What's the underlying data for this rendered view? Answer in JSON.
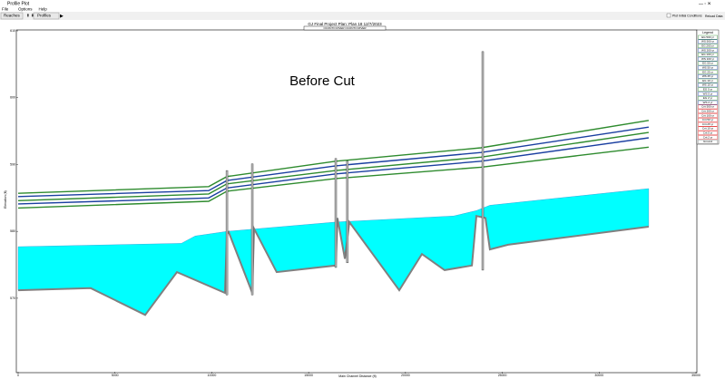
{
  "window": {
    "title": "Profile Plot"
  },
  "menu": [
    "File",
    "Options",
    "Help"
  ],
  "toolbar": {
    "reaches": "Reaches",
    "profiles": "Profiles",
    "checkbox": "Plot Initial Conditions",
    "reload": "Reload Data"
  },
  "chart_data": {
    "type": "line",
    "title": "GJ Final Project    Plan: Plan 18    12/7/2023",
    "subtitle": "OCONTO RIVER OCONTO RIVER",
    "annotation": "Before Cut",
    "x_label": "Main Channel Distance (ft)",
    "y_label": "Elevation (ft)",
    "xlim": [
      0,
      35000
    ],
    "xticks": [
      0,
      5000,
      10000,
      15000,
      20000,
      25000,
      30000,
      35000
    ],
    "ylim": [
      559,
      610
    ],
    "yticks": [
      570,
      580,
      590,
      600,
      610
    ],
    "series": [
      {
        "color": "#00ffff",
        "fill": true,
        "x": [
          0,
          8430,
          9140,
          10780,
          16400,
          22490,
          23660,
          24360,
          32560
        ],
        "values": [
          577.7,
          578.2,
          579.3,
          580.0,
          581.4,
          582.3,
          583.1,
          583.9,
          586.4
        ]
      },
      {
        "color": "#2e8b2e",
        "x": [
          0,
          9840,
          10780,
          16400,
          23900,
          32560
        ],
        "values": [
          585.7,
          586.7,
          588.2,
          590.5,
          592.5,
          596.6
        ]
      },
      {
        "color": "#1a3fa0",
        "x": [
          0,
          9840,
          10780,
          16400,
          23900,
          32560
        ],
        "values": [
          585.2,
          586.1,
          587.6,
          589.8,
          591.8,
          595.6
        ]
      },
      {
        "color": "#2e8b2e",
        "x": [
          0,
          9840,
          10780,
          16400,
          23900,
          32560
        ],
        "values": [
          584.6,
          585.6,
          587.1,
          589.1,
          591.1,
          594.8
        ]
      },
      {
        "color": "#1a3fa0",
        "x": [
          0,
          9840,
          10780,
          16400,
          23900,
          32560
        ],
        "values": [
          584.1,
          585.0,
          586.5,
          588.6,
          590.5,
          594.0
        ]
      },
      {
        "color": "#2e8b2e",
        "x": [
          0,
          9840,
          10780,
          16400,
          23900,
          32560
        ],
        "values": [
          583.5,
          584.5,
          586.0,
          587.9,
          589.6,
          592.6
        ]
      },
      {
        "name": "Ground",
        "color": "#808080",
        "x": [
          0,
          3750,
          6560,
          8200,
          10680,
          10780,
          10870,
          12090,
          12180,
          13350,
          16400,
          16490,
          16870,
          17100,
          19680,
          20850,
          22020,
          23430,
          23660,
          24130,
          24360,
          25300,
          32560
        ],
        "values": [
          571.2,
          571.5,
          567.5,
          573.9,
          570.8,
          579.6,
          579.9,
          570.8,
          580.4,
          573.9,
          574.9,
          582.0,
          575.9,
          581.4,
          571.2,
          576.6,
          574.2,
          574.9,
          582.3,
          582.0,
          577.3,
          578.0,
          580.7
        ]
      }
    ],
    "structures": {
      "x": [
        10780,
        12090,
        16400,
        17000,
        23990
      ],
      "top": [
        589.1,
        590.1,
        590.9,
        590.5,
        606.9
      ],
      "bottom": [
        570.5,
        570.5,
        574.6,
        575.3,
        574.2
      ]
    },
    "legend_title": "Legend",
    "legend": [
      {
        "label": "EG 500 yr",
        "color": "#2e8b2e"
      },
      {
        "label": "WS 500 yr",
        "color": "#1a3fa0"
      },
      {
        "label": "EG 200 yr",
        "color": "#2e8b2e"
      },
      {
        "label": "WS 200 yr",
        "color": "#1a3fa0"
      },
      {
        "label": "EG 100 yr",
        "color": "#2e8b2e"
      },
      {
        "label": "WS 100 yr",
        "color": "#1a3fa0"
      },
      {
        "label": "EG 50 yr",
        "color": "#2e8b2e"
      },
      {
        "label": "WS 50 yr",
        "color": "#1a3fa0"
      },
      {
        "label": "EG 25 yr",
        "color": "#2e8b2e"
      },
      {
        "label": "WS 25 yr",
        "color": "#1a3fa0"
      },
      {
        "label": "EG 10 yr",
        "color": "#2e8b2e"
      },
      {
        "label": "WS 10 yr",
        "color": "#1a3fa0"
      },
      {
        "label": "EG 5 yr",
        "color": "#2e8b2e"
      },
      {
        "label": "WS 5 yr",
        "color": "#1a3fa0"
      },
      {
        "label": "EG 2 yr",
        "color": "#2e8b2e"
      },
      {
        "label": "WS 2 yr",
        "color": "#1a3fa0"
      },
      {
        "label": "Crit 500 yr",
        "color": "#e02020"
      },
      {
        "label": "Crit 200 yr",
        "color": "#e02020"
      },
      {
        "label": "Crit 100 yr",
        "color": "#e02020"
      },
      {
        "label": "Crit 50 yr",
        "color": "#e02020"
      },
      {
        "label": "Crit 25 yr",
        "color": "#e02020"
      },
      {
        "label": "Crit 10 yr",
        "color": "#e02020"
      },
      {
        "label": "Crit 5 yr",
        "color": "#e02020"
      },
      {
        "label": "Crit 2 yr",
        "color": "#e02020"
      },
      {
        "label": "Ground",
        "color": "#808080"
      }
    ]
  }
}
